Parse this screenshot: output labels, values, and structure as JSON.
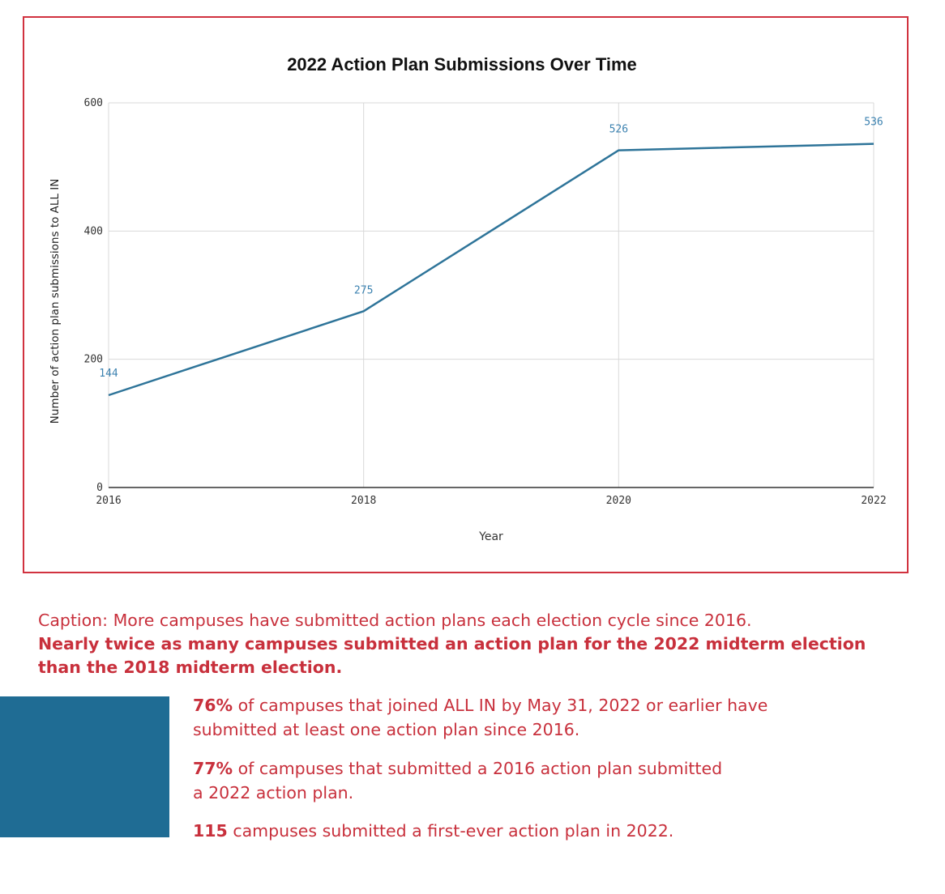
{
  "chart_data": {
    "type": "line",
    "title": "2022 Action Plan Submissions Over Time",
    "xlabel": "Year",
    "ylabel": "Number of action plan submissions to ALL IN",
    "x": [
      2016,
      2018,
      2020,
      2022
    ],
    "x_tick_labels": [
      "2016",
      "2018",
      "2020",
      "2022"
    ],
    "y_ticks": [
      0,
      200,
      400,
      600
    ],
    "y_tick_labels": [
      "0",
      "200",
      "400",
      "600"
    ],
    "ylim": [
      0,
      600
    ],
    "grid": true,
    "series": [
      {
        "values": [
          144,
          275,
          526,
          536
        ],
        "data_labels": [
          "144",
          "275",
          "526",
          "536"
        ]
      }
    ],
    "colors": {
      "line": "#2e7499",
      "label": "#3c82b0",
      "frame": "#d1323f"
    }
  },
  "caption": {
    "prefix": "Caption: ",
    "lead": "More campuses have submitted action plans each election cycle since 2016.",
    "body": "Nearly twice as many campuses submitted an action plan for the 2022 midterm election than the 2018 midterm election."
  },
  "stats": [
    {
      "number": "76%",
      "line1": " of campuses that joined ALL IN by May 31, 2022 or earlier have",
      "line2": "submitted at least one action plan since 2016."
    },
    {
      "number": "77%",
      "line1": " of campuses that submitted a 2016 action plan submitted",
      "line2": "a 2022 action plan."
    },
    {
      "number": "115",
      "line1": " campuses submitted a first-ever action plan in 2022.",
      "line2": ""
    }
  ],
  "colors": {
    "accent_red": "#c8303c",
    "block_blue": "#1f6c94"
  }
}
